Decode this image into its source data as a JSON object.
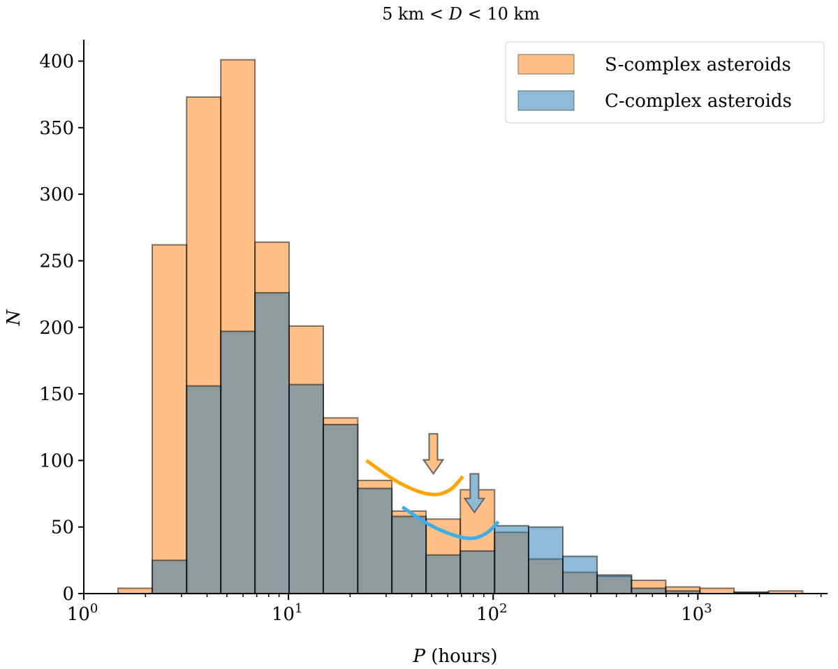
{
  "chart_data": {
    "type": "bar",
    "title_parts": [
      "5 km < ",
      "D",
      " < 10 km"
    ],
    "xlabel_parts": [
      "P",
      " (hours)"
    ],
    "ylabel": "N",
    "xscale": "log",
    "xlim": [
      1,
      4300
    ],
    "ylim": [
      0,
      416
    ],
    "grid": false,
    "legend_placement": "top-right",
    "xticks": [
      1,
      10,
      100,
      1000
    ],
    "xtick_labels": [
      {
        "base": "10",
        "exp": "0"
      },
      {
        "base": "10",
        "exp": "1"
      },
      {
        "base": "10",
        "exp": "2"
      },
      {
        "base": "10",
        "exp": "3"
      }
    ],
    "yticks": [
      0,
      50,
      100,
      150,
      200,
      250,
      300,
      350,
      400
    ],
    "ytick_labels": [
      "0",
      "50",
      "100",
      "150",
      "200",
      "250",
      "300",
      "350",
      "400"
    ],
    "bin_edges": [
      1.47,
      2.16,
      3.18,
      4.67,
      6.86,
      10.07,
      14.8,
      21.8,
      32.0,
      47.0,
      69.1,
      101.6,
      149,
      219,
      322,
      474,
      697,
      1023,
      1503,
      2212,
      3250
    ],
    "series": [
      {
        "name": "S-complex asteroids",
        "color": "#ff7f0e",
        "values": [
          4,
          262,
          373,
          401,
          264,
          201,
          132,
          85,
          62,
          56,
          78,
          46,
          26,
          16,
          13,
          10,
          5,
          4,
          1,
          2
        ]
      },
      {
        "name": "C-complex asteroids",
        "color": "#1f77b4",
        "values": [
          0,
          25,
          156,
          197,
          226,
          157,
          127,
          79,
          58,
          29,
          32,
          51,
          50,
          28,
          14,
          4,
          2,
          0,
          1,
          0
        ]
      }
    ],
    "annotations": {
      "curves": [
        {
          "color": "#ffa500",
          "points": [
            [
              24,
              100
            ],
            [
              35,
              82
            ],
            [
              50,
              73
            ],
            [
              62,
              77
            ],
            [
              71,
              88
            ]
          ]
        },
        {
          "color": "#3daee9",
          "points": [
            [
              36,
              65
            ],
            [
              50,
              50
            ],
            [
              75,
              40
            ],
            [
              92,
              44
            ],
            [
              106,
              54
            ]
          ]
        }
      ],
      "arrows": [
        {
          "color": "#ffbf86",
          "x": 51,
          "y_top": 120,
          "y_tip": 90
        },
        {
          "color": "#8fbbd9",
          "x": 81,
          "y_top": 90,
          "y_tip": 61
        }
      ]
    }
  }
}
